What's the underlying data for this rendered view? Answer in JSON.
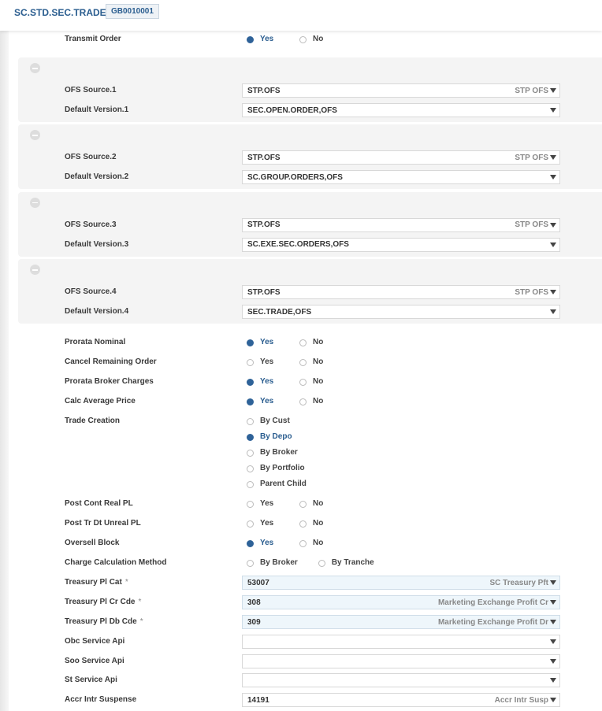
{
  "header": {
    "title": "SC.STD.SEC.TRADE",
    "record_id": "GB0010001"
  },
  "transmit_order": {
    "label": "Transmit Order",
    "options": [
      "Yes",
      "No"
    ],
    "selected": 0
  },
  "groups": [
    {
      "rows": [
        {
          "label": "OFS Source.1",
          "value": "STP.OFS",
          "enrichment": "STP OFS"
        },
        {
          "label": "Default Version.1",
          "value": "SEC.OPEN.ORDER,OFS"
        }
      ]
    },
    {
      "rows": [
        {
          "label": "OFS Source.2",
          "value": "STP.OFS",
          "enrichment": "STP OFS"
        },
        {
          "label": "Default Version.2",
          "value": "SC.GROUP.ORDERS,OFS"
        }
      ]
    },
    {
      "rows": [
        {
          "label": "OFS Source.3",
          "value": "STP.OFS",
          "enrichment": "STP OFS"
        },
        {
          "label": "Default Version.3",
          "value": "SC.EXE.SEC.ORDERS,OFS"
        }
      ]
    },
    {
      "rows": [
        {
          "label": "OFS Source.4",
          "value": "STP.OFS",
          "enrichment": "STP OFS"
        },
        {
          "label": "Default Version.4",
          "value": "SEC.TRADE,OFS"
        }
      ]
    }
  ],
  "fields": [
    {
      "label": "Prorata Nominal",
      "options": [
        "Yes",
        "No"
      ],
      "selected": 0
    },
    {
      "label": "Cancel Remaining Order",
      "options": [
        "Yes",
        "No"
      ]
    },
    {
      "label": "Prorata Broker Charges",
      "options": [
        "Yes",
        "No"
      ],
      "selected": 0
    },
    {
      "label": "Calc Average Price",
      "options": [
        "Yes",
        "No"
      ],
      "selected": 0
    },
    {
      "label": "Trade Creation",
      "options": [
        "By Cust",
        "By Depo",
        "By Broker",
        "By Portfolio",
        "Parent Child"
      ],
      "selected": 1,
      "vertical": true
    },
    {
      "label": "Post Cont Real PL",
      "options": [
        "Yes",
        "No"
      ]
    },
    {
      "label": "Post Tr Dt Unreal PL",
      "options": [
        "Yes",
        "No"
      ]
    },
    {
      "label": "Oversell Block",
      "options": [
        "Yes",
        "No"
      ],
      "selected": 0
    },
    {
      "label": "Charge Calculation Method",
      "options": [
        "By Broker",
        "By Tranche"
      ]
    },
    {
      "label": "Treasury Pl Cat",
      "required": "*",
      "value": "53007",
      "enrichment": "SC Treasury Pft"
    },
    {
      "label": "Treasury Pl Cr Cde",
      "required": "*",
      "value": "308",
      "enrichment": "Marketing Exchange Profit Cr"
    },
    {
      "label": "Treasury Pl Db Cde",
      "required": "*",
      "value": "309",
      "enrichment": "Marketing Exchange Profit Dr"
    },
    {
      "label": "Obc Service Api"
    },
    {
      "label": "Soo Service Api"
    },
    {
      "label": "St Service Api"
    },
    {
      "label": "Accr Intr Suspense",
      "value": "14191",
      "enrichment": "Accr Intr Susp"
    }
  ]
}
